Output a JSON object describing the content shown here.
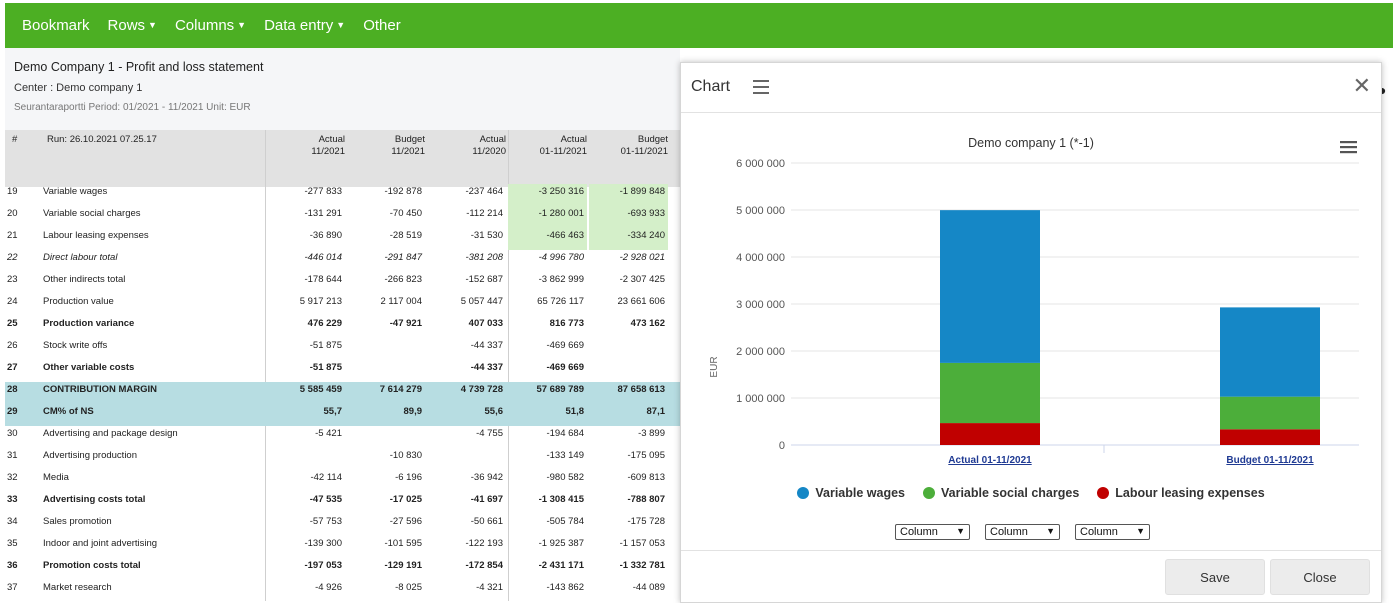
{
  "nav": [
    "Bookmark",
    "Rows",
    "Columns",
    "Data entry",
    "Other"
  ],
  "nav_dropdown": [
    false,
    true,
    true,
    true,
    false
  ],
  "report": {
    "title": "Demo Company 1 - Profit and loss statement",
    "center": "Center : Demo company 1",
    "period": "Seurantaraportti Period: 01/2021 - 11/2021 Unit: EUR",
    "hash": "#",
    "run": "Run: 26.10.2021 07.25.17",
    "columns": [
      [
        "Actual",
        "11/2021"
      ],
      [
        "Budget",
        "11/2021"
      ],
      [
        "Actual",
        "11/2020"
      ],
      [
        "Actual",
        "01-11/2021"
      ],
      [
        "Budget",
        "01-11/2021"
      ]
    ]
  },
  "rows": [
    {
      "no": "19",
      "label": "Variable wages",
      "v": [
        "-277 833",
        "-192 878",
        "-237 464",
        "-3 250 316",
        "-1 899 848"
      ],
      "style": "",
      "green": true
    },
    {
      "no": "20",
      "label": "Variable social charges",
      "v": [
        "-131 291",
        "-70 450",
        "-112 214",
        "-1 280 001",
        "-693 933"
      ],
      "style": "",
      "green": true
    },
    {
      "no": "21",
      "label": "Labour leasing expenses",
      "v": [
        "-36 890",
        "-28 519",
        "-31 530",
        "-466 463",
        "-334 240"
      ],
      "style": "",
      "green": true
    },
    {
      "no": "22",
      "label": "Direct labour total",
      "v": [
        "-446 014",
        "-291 847",
        "-381 208",
        "-4 996 780",
        "-2 928 021"
      ],
      "style": "italic"
    },
    {
      "no": "23",
      "label": "Other indirects total",
      "v": [
        "-178 644",
        "-266 823",
        "-152 687",
        "-3 862 999",
        "-2 307 425"
      ],
      "style": ""
    },
    {
      "no": "24",
      "label": "Production value",
      "v": [
        "5 917 213",
        "2 117 004",
        "5 057 447",
        "65 726 117",
        "23 661 606"
      ],
      "style": ""
    },
    {
      "no": "25",
      "label": "Production variance",
      "v": [
        "476 229",
        "-47 921",
        "407 033",
        "816 773",
        "473 162"
      ],
      "style": "bold"
    },
    {
      "no": "26",
      "label": "Stock write offs",
      "v": [
        "-51 875",
        "",
        "-44 337",
        "-469 669",
        ""
      ],
      "style": ""
    },
    {
      "no": "27",
      "label": "Other variable costs",
      "v": [
        "-51 875",
        "",
        "-44 337",
        "-469 669",
        ""
      ],
      "style": "bold"
    },
    {
      "no": "28",
      "label": "CONTRIBUTION MARGIN",
      "v": [
        "5 585 459",
        "7 614 279",
        "4 739 728",
        "57 689 789",
        "87 658 613"
      ],
      "style": "bold hl"
    },
    {
      "no": "29",
      "label": "CM% of NS",
      "v": [
        "55,7",
        "89,9",
        "55,6",
        "51,8",
        "87,1"
      ],
      "style": "bold hl"
    },
    {
      "no": "30",
      "label": "Advertising and package design",
      "v": [
        "-5 421",
        "",
        "-4 755",
        "-194 684",
        "-3 899"
      ],
      "style": ""
    },
    {
      "no": "31",
      "label": "Advertising production",
      "v": [
        "",
        "-10 830",
        "",
        "-133 149",
        "-175 095"
      ],
      "style": ""
    },
    {
      "no": "32",
      "label": "Media",
      "v": [
        "-42 114",
        "-6 196",
        "-36 942",
        "-980 582",
        "-609 813"
      ],
      "style": ""
    },
    {
      "no": "33",
      "label": "Advertising costs total",
      "v": [
        "-47 535",
        "-17 025",
        "-41 697",
        "-1 308 415",
        "-788 807"
      ],
      "style": "bold"
    },
    {
      "no": "34",
      "label": "Sales promotion",
      "v": [
        "-57 753",
        "-27 596",
        "-50 661",
        "-505 784",
        "-175 728"
      ],
      "style": ""
    },
    {
      "no": "35",
      "label": "Indoor and joint advertising",
      "v": [
        "-139 300",
        "-101 595",
        "-122 193",
        "-1 925 387",
        "-1 157 053"
      ],
      "style": ""
    },
    {
      "no": "36",
      "label": "Promotion costs total",
      "v": [
        "-197 053",
        "-129 191",
        "-172 854",
        "-2 431 171",
        "-1 332 781"
      ],
      "style": "bold"
    },
    {
      "no": "37",
      "label": "Market research",
      "v": [
        "-4 926",
        "-8 025",
        "-4 321",
        "-143 862",
        "-44 089"
      ],
      "style": ""
    }
  ],
  "panel": {
    "title": "Chart",
    "save": "Save",
    "close": "Close",
    "selects": [
      "Column",
      "Column",
      "Column"
    ]
  },
  "chart_data": {
    "type": "bar",
    "stacked": true,
    "title": "Demo company 1 (*-1)",
    "ylabel": "EUR",
    "ylim": [
      0,
      6000000
    ],
    "yticks": [
      "6 000 000",
      "5 000 000",
      "4 000 000",
      "3 000 000",
      "2 000 000",
      "1 000 000",
      "0"
    ],
    "categories": [
      "Actual 01-11/2021",
      "Budget 01-11/2021"
    ],
    "legend_position": "bottom",
    "series": [
      {
        "name": "Variable wages",
        "color": "#1587c6",
        "values": [
          3250316,
          1899848
        ]
      },
      {
        "name": "Variable social charges",
        "color": "#4cae3a",
        "values": [
          1280001,
          693933
        ]
      },
      {
        "name": "Labour leasing expenses",
        "color": "#c00000",
        "values": [
          466463,
          334240
        ]
      }
    ]
  }
}
